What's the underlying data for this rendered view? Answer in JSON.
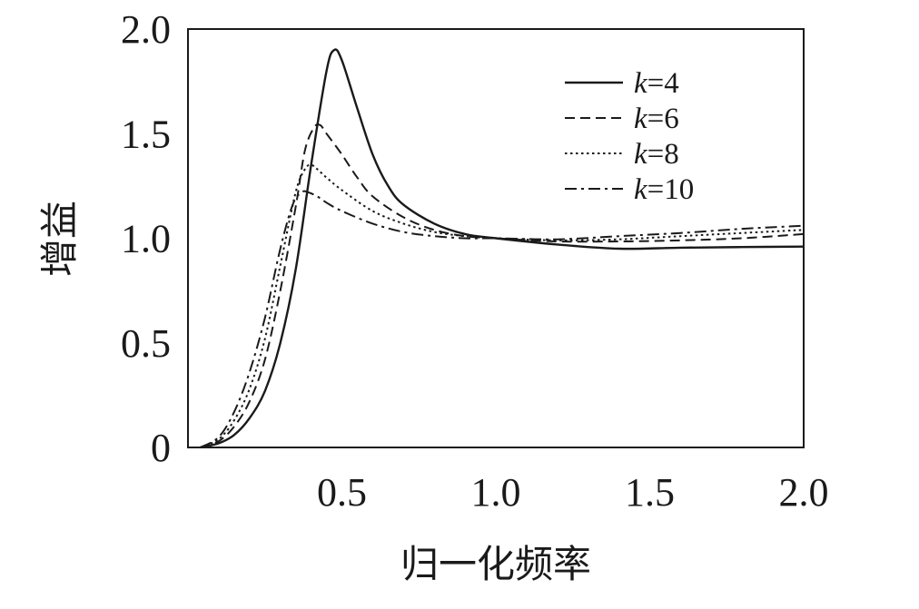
{
  "chart_data": {
    "type": "line",
    "xlabel": "归一化频率",
    "ylabel": "增益",
    "xlim": [
      0.0,
      2.0
    ],
    "ylim": [
      0.0,
      2.0
    ],
    "xticks": [
      "0.5",
      "1.0",
      "1.5",
      "2.0"
    ],
    "xtick_values": [
      0.5,
      1.0,
      1.5,
      2.0
    ],
    "yticks": [
      "0",
      "0.5",
      "1.0",
      "1.5",
      "2.0"
    ],
    "ytick_values": [
      0.0,
      0.5,
      1.0,
      1.5,
      2.0
    ],
    "grid": false,
    "legend_position": "top-right",
    "series": [
      {
        "name": "k=4",
        "label_var": "k",
        "label_rest": "=4",
        "style": "solid",
        "x": [
          0.04,
          0.1,
          0.15,
          0.2,
          0.25,
          0.3,
          0.35,
          0.4,
          0.45,
          0.475,
          0.5,
          0.55,
          0.6,
          0.65,
          0.7,
          0.8,
          0.9,
          1.0,
          1.2,
          1.4,
          1.6,
          1.8,
          2.0
        ],
        "y": [
          0.0,
          0.02,
          0.06,
          0.14,
          0.27,
          0.5,
          0.85,
          1.35,
          1.8,
          1.9,
          1.85,
          1.62,
          1.4,
          1.25,
          1.16,
          1.07,
          1.02,
          1.0,
          0.97,
          0.95,
          0.955,
          0.958,
          0.96
        ]
      },
      {
        "name": "k=6",
        "label_var": "k",
        "label_rest": "=6",
        "style": "dashed",
        "x": [
          0.04,
          0.1,
          0.15,
          0.2,
          0.25,
          0.3,
          0.35,
          0.38,
          0.41,
          0.43,
          0.45,
          0.5,
          0.55,
          0.6,
          0.7,
          0.8,
          0.9,
          1.0,
          1.2,
          1.4,
          1.6,
          1.8,
          2.0
        ],
        "y": [
          0.0,
          0.03,
          0.1,
          0.22,
          0.42,
          0.75,
          1.15,
          1.42,
          1.53,
          1.54,
          1.5,
          1.4,
          1.29,
          1.2,
          1.1,
          1.04,
          1.01,
          1.0,
          0.985,
          0.985,
          0.99,
          1.0,
          1.02
        ]
      },
      {
        "name": "k=8",
        "label_var": "k",
        "label_rest": "=8",
        "style": "dotted",
        "x": [
          0.04,
          0.1,
          0.15,
          0.2,
          0.25,
          0.3,
          0.35,
          0.38,
          0.4,
          0.42,
          0.45,
          0.5,
          0.6,
          0.7,
          0.8,
          0.9,
          1.0,
          1.2,
          1.4,
          1.6,
          1.8,
          2.0
        ],
        "y": [
          0.0,
          0.04,
          0.13,
          0.28,
          0.52,
          0.87,
          1.22,
          1.33,
          1.35,
          1.33,
          1.29,
          1.23,
          1.13,
          1.07,
          1.03,
          1.01,
          1.0,
          0.99,
          0.995,
          1.01,
          1.025,
          1.04
        ]
      },
      {
        "name": "k=10",
        "label_var": "k",
        "label_rest": "=10",
        "style": "dashdot",
        "x": [
          0.04,
          0.1,
          0.15,
          0.2,
          0.25,
          0.3,
          0.34,
          0.37,
          0.39,
          0.42,
          0.45,
          0.5,
          0.6,
          0.7,
          0.8,
          0.9,
          1.0,
          1.2,
          1.4,
          1.6,
          1.8,
          2.0
        ],
        "y": [
          0.0,
          0.05,
          0.17,
          0.36,
          0.62,
          0.95,
          1.16,
          1.22,
          1.22,
          1.2,
          1.17,
          1.13,
          1.07,
          1.03,
          1.01,
          1.0,
          1.0,
          0.995,
          1.01,
          1.025,
          1.045,
          1.06
        ]
      }
    ]
  }
}
